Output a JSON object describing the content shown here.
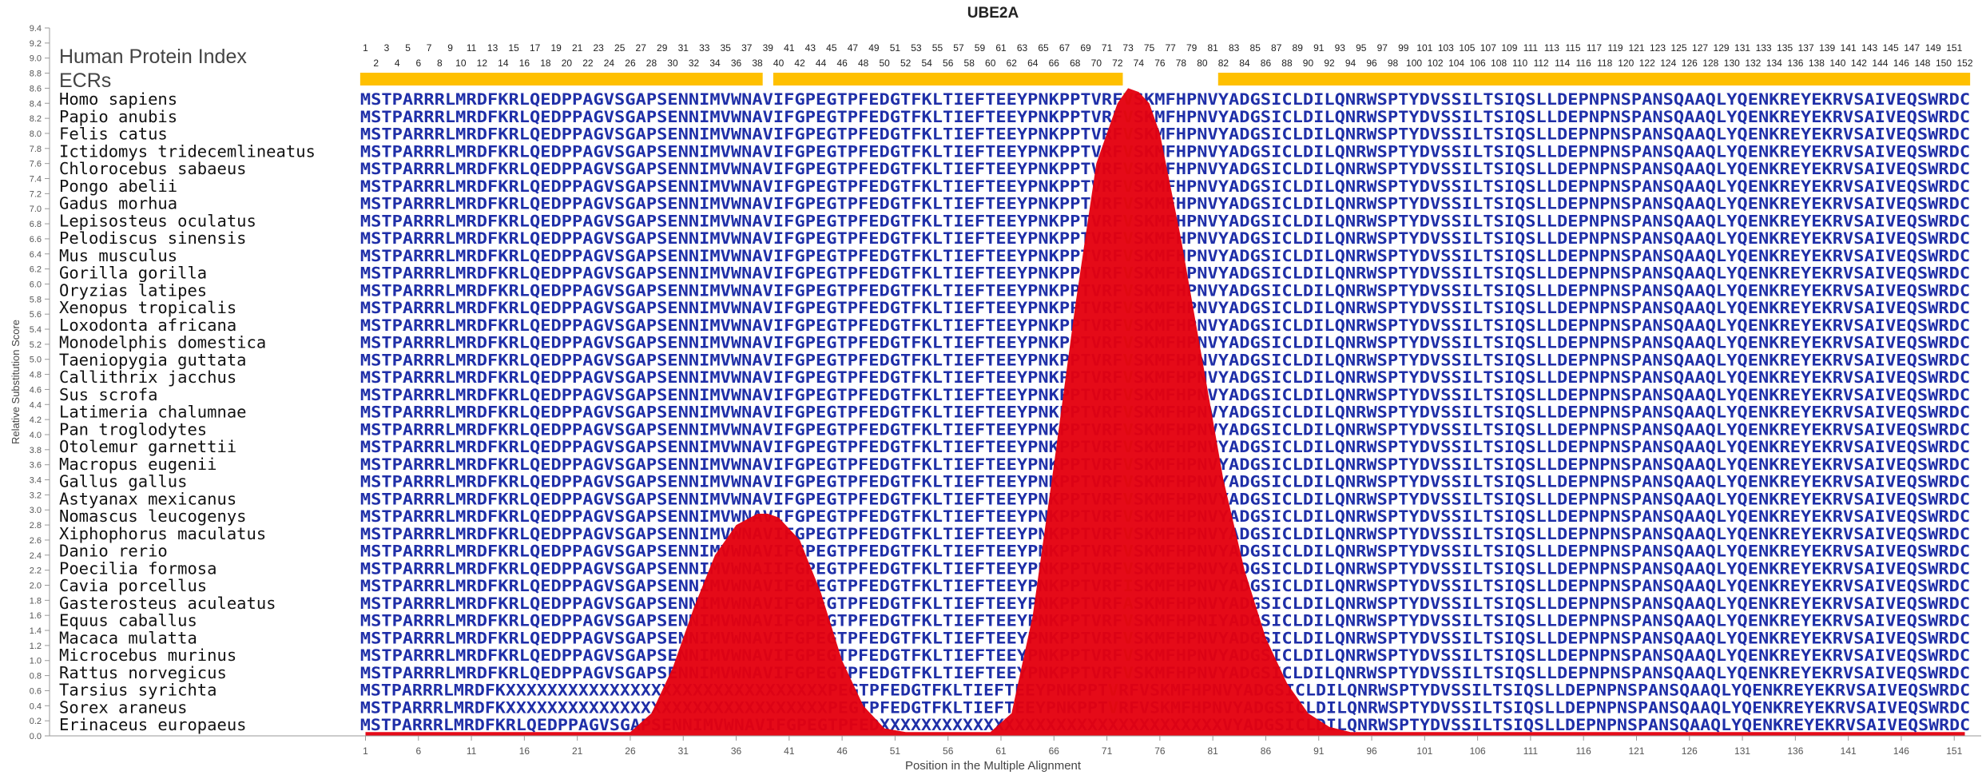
{
  "chart_data": {
    "type": "area",
    "title": "UBE2A",
    "xlabel": "Position in the Multiple Alignment",
    "ylabel": "Relative Substitution Score",
    "y_ticks": [
      0.0,
      0.2,
      0.4,
      0.6,
      0.8,
      1.0,
      1.2,
      1.4,
      1.6,
      1.8,
      2.0,
      2.2,
      2.4,
      2.6,
      2.8,
      3.0,
      3.2,
      3.4,
      3.6,
      3.8,
      4.0,
      4.2,
      4.4,
      4.6,
      4.8,
      5.0,
      5.2,
      5.4,
      5.6,
      5.8,
      6.0,
      6.2,
      6.4,
      6.6,
      6.8,
      7.0,
      7.2,
      7.4,
      7.6,
      7.8,
      8.0,
      8.2,
      8.4,
      8.6,
      8.8,
      9.0,
      9.2,
      9.4
    ],
    "x_ticks": [
      1,
      6,
      11,
      16,
      21,
      26,
      31,
      36,
      41,
      46,
      51,
      56,
      61,
      66,
      71,
      76,
      81,
      86,
      91,
      96,
      101,
      106,
      111,
      116,
      121,
      126,
      131,
      136,
      141,
      146,
      151
    ],
    "xlim": [
      1,
      152
    ],
    "ylim": [
      0,
      9.4
    ],
    "grid": false,
    "series_color": "#e4000f",
    "ecr_label": "ECRs",
    "ecr_color": "#ffc000",
    "ecrs": [
      [
        1,
        38
      ],
      [
        40,
        72
      ],
      [
        82,
        152
      ]
    ],
    "index_label": "Human Protein Index",
    "index_odd": [
      1,
      3,
      5,
      7,
      9,
      11,
      13,
      15,
      17,
      19,
      21,
      23,
      25,
      27,
      29,
      31,
      33,
      35,
      37,
      39,
      41,
      43,
      45,
      47,
      49,
      51,
      53,
      55,
      57,
      59,
      61,
      63,
      65,
      67,
      69,
      71,
      73,
      75,
      77,
      79,
      81,
      83,
      85,
      87,
      89,
      91,
      93,
      95,
      97,
      99,
      101,
      103,
      105,
      107,
      109,
      111,
      113,
      115,
      117,
      119,
      121,
      123,
      125,
      127,
      129,
      131,
      133,
      135,
      137,
      139,
      141,
      143,
      145,
      147,
      149,
      151
    ],
    "index_even": [
      2,
      4,
      6,
      8,
      10,
      12,
      14,
      16,
      18,
      20,
      22,
      24,
      26,
      28,
      30,
      32,
      34,
      36,
      38,
      40,
      42,
      44,
      46,
      48,
      50,
      52,
      54,
      56,
      58,
      60,
      62,
      64,
      66,
      68,
      70,
      72,
      74,
      76,
      78,
      80,
      82,
      84,
      86,
      88,
      90,
      92,
      94,
      96,
      98,
      100,
      102,
      104,
      106,
      108,
      110,
      112,
      114,
      116,
      118,
      120,
      122,
      124,
      126,
      128,
      130,
      132,
      134,
      136,
      138,
      140,
      142,
      144,
      146,
      148,
      150,
      152
    ],
    "x": [
      1,
      26,
      28,
      30,
      32,
      34,
      36,
      38,
      39,
      40,
      42,
      44,
      46,
      48,
      50,
      52,
      60,
      62,
      64,
      66,
      68,
      70,
      72,
      73,
      74,
      75,
      76,
      78,
      80,
      82,
      84,
      86,
      88,
      90,
      92,
      94,
      96,
      152
    ],
    "y": [
      0.05,
      0.05,
      0.3,
      0.9,
      1.7,
      2.4,
      2.8,
      2.95,
      2.95,
      2.9,
      2.6,
      1.9,
      1.0,
      0.4,
      0.1,
      0.05,
      0.05,
      0.3,
      1.6,
      3.6,
      5.7,
      7.6,
      8.4,
      8.6,
      8.55,
      8.4,
      8.0,
      6.6,
      5.0,
      3.4,
      2.2,
      1.3,
      0.7,
      0.3,
      0.12,
      0.05,
      0.05,
      0.05
    ],
    "species": [
      "Homo sapiens",
      "Papio anubis",
      "Felis catus",
      "Ictidomys tridecemlineatus",
      "Chlorocebus sabaeus",
      "Pongo abelii",
      "Gadus morhua",
      "Lepisosteus oculatus",
      "Pelodiscus sinensis",
      "Mus musculus",
      "Gorilla gorilla",
      "Oryzias latipes",
      "Xenopus tropicalis",
      "Loxodonta africana",
      "Monodelphis domestica",
      "Taeniopygia guttata",
      "Callithrix jacchus",
      "Sus scrofa",
      "Latimeria chalumnae",
      "Pan troglodytes",
      "Otolemur garnettii",
      "Macropus eugenii",
      "Gallus gallus",
      "Astyanax mexicanus",
      "Nomascus leucogenys",
      "Xiphophorus maculatus",
      "Danio rerio",
      "Poecilia formosa",
      "Cavia porcellus",
      "Gasterosteus aculeatus",
      "Equus caballus",
      "Macaca mulatta",
      "Microcebus murinus",
      "Rattus norvegicus",
      "Tarsius syrichta",
      "Sorex araneus",
      "Erinaceus europaeus"
    ],
    "sequences": [
      "MSTPARRRLMRDFKRLQEDPPAGVSGAPSENNIMVWNAVIFGPEGTPFEDGTFKLTIEFTEEYPNKPPTVRFVSKMFHPNVYADGSICLDILQNRWSPTYDVSSILTSIQSLLDEPNPNSPANSQAAQLYQENKREYEKRVSAIVEQSWRDC",
      "MSTPARRRLMRDFKRLQEDPPAGVSGAPSENNIMVWNAVIFGPEGTPFEDGTFKLTIEFTEEYPNKPPTVRFVSKMFHPNVYADGSICLDILQNRWSPTYDVSSILTSIQSLLDEPNPNSPANSQAAQLYQENKREYEKRVSAIVEQSWRDC",
      "MSTPARRRLMRDFKRLQEDPPAGVSGAPSENNIMVWNAVIFGPEGTPFEDGTFKLTIEFTEEYPNKPPTVRFVSKMFHPNVYADGSICLDILQNRWSPTYDVSSILTSIQSLLDEPNPNSPANSQAAQLYQENKREYEKRVSAIVEQSWRDC",
      "MSTPARRRLMRDFKRLQEDPPAGVSGAPSENNIMVWNAVIFGPEGTPFEDGTFKLTIEFTEEYPNKPPTVRFVSKMFHPNVYADGSICLDILQNRWSPTYDVSSILTSIQSLLDEPNPNSPANSQAAQLYQENKREYEKRVSAIVEQSWRDC",
      "MSTPARRRLMRDFKRLQEDPPAGVSGAPSENNIMVWNAVIFGPEGTPFEDGTFKLTIEFTEEYPNKPPTVRFVSKMFHPNVYADGSICLDILQNRWSPTYDVSSILTSIQSLLDEPNPNSPANSQAAQLYQENKREYEKRVSAIVEQSWRDC",
      "MSTPARRRLMRDFKRLQEDPPAGVSGAPSENNIMVWNAVIFGPEGTPFEDGTFKLTIEFTEEYPNKPPTVRFVSKMFHPNVYADGSICLDILQNRWSPTYDVSSILTSIQSLLDEPNPNSPANSQAAQLYQENKREYEKRVSAIVEQSWRDC",
      "MSTPARRRLMRDFKRLQEDPPAGVSGAPSENNIMVWNAVIFGPEGTPFEDGTFKLTIEFTEEYPNKPPTVRFVSKMFHPNVYADGSICLDILQNRWSPTYDVSSILTSIQSLLDEPNPNSPANSQAAQLYQENKREYEKRVSAIVEQSWRDC",
      "MSTPARRRLMRDFKRLQEDPPAGVSGAPSENNIMVWNAVIFGPEGTPFEDGTFKLTIEFTEEYPNKPPTVRFVSKMFHPNVYADGSICLDILQNRWSPTYDVSSILTSIQSLLDEPNPNSPANSQAAQLYQENKREYEKRVSAIVEQSWRDC",
      "MSTPARRRLMRDFKRLQEDPPAGVSGAPSENNIMVWNAVIFGPEGTPFEDGTFKLTIEFTEEYPNKPPTVRFVSKMFHPNVYADGSICLDILQNRWSPTYDVSSILTSIQSLLDEPNPNSPANSQAAQLYQENKREYEKRVSAIVEQSWRDC",
      "MSTPARRRLMRDFKRLQEDPPAGVSGAPSENNIMVWNAVIFGPEGTPFEDGTFKLTIEFTEEYPNKPPTVRFVSKMFHPNVYADGSICLDILQNRWSPTYDVSSILTSIQSLLDEPNPNSPANSQAAQLYQENKREYEKRVSAIVEQSWRDC",
      "MSTPARRRLMRDFKRLQEDPPAGVSGAPSENNIMVWNAVIFGPEGTPFEDGTFKLTIEFTEEYPNKPPTVRFVSKMFHPNVYADGSICLDILQNRWSPTYDVSSILTSIQSLLDEPNPNSPANSQAAQLYQENKREYEKRVSAIVEQSWRDC",
      "MSTPARRRLMRDFKRLQEDPPAGVSGAPSENNIMVWNAVIFGPEGTPFEDGTFKLTIEFTEEYPNKPPTVRFVSKMFHPNVYADGSICLDILQNRWSPTYDVSSILTSIQSLLDEPNPNSPANSQAAQLYQENKREYEKRVSAIVEQSWRDC",
      "MSTPARRRLMRDFKRLQEDPPAGVSGAPSENNIMVWNAVIFGPEGTPFEDGTFKLTIEFTEEYPNKPPTVRFVSKMFHPNVYADGSICLDILQNRWSPTYDVSSILTSIQSLLDEPNPNSPANSQAAQLYQENKREYEKRVSAIVEQSWRDC",
      "MSTPARRRLMRDFKRLQEDPPAGVSGAPSENNIMVWNAVIFGPEGTPFEDGTFKLTIEFTEEYPNKPPTVRFVSKMFHPNVYADGSICLDILQNRWSPTYDVSSILTSIQSLLDEPNPNSPANSQAAQLYQENKREYEKRVSAIVEQSWRDC",
      "MSTPARRRLMRDFKRLQEDPPAGVSGAPSENNIMVWNAVIFGPEGTPFEDGTFKLTIEFTEEYPNKPPTVRFVSKMFHPNVYADGSICLDILQNRWSPTYDVSSILTSIQSLLDEPNPNSPANSQAAQLYQENKREYEKRVSAIVEQSWRDC",
      "MSTPARRRLMRDFKRLQEDPPAGVSGAPSENNIMVWNAVIFGPEGTPFEDGTFKLTIEFTEEYPNKPPTVRFVSKMFHPNVYADGSICLDILQNRWSPTYDVSSILTSIQSLLDEPNPNSPANSQAAQLYQENKREYEKRVSAIVEQSWRDC",
      "MSTPARRRLMRDFKRLQEDPPAGVSGAPSENNIMVWNAVIFGPEGTPFEDGTFKLTIEFTEEYPNKPPTVRFVSKMFHPNVYADGSICLDILQNRWSPTYDVSSILTSIQSLLDEPNPNSPANSQAAQLYQENKREYEKRVSAIVEQSWRDC",
      "MSTPARRRLMRDFKRLQEDPPAGVSGAPSENNIMVWNAVIFGPEGTPFEDGTFKLTIEFTEEYPNKPPTVRFVSKMFHPNVYADGSICLDILQNRWSPTYDVSSILTSIQSLLDEPNPNSPANSQAAQLYQENKREYEKRVSAIVEQSWRDC",
      "MSTPARRRLMRDFKRLQEDPPAGVSGAPSENNIMVWNAVIFGPEGTPFEDGTFKLTIEFTEEYPNKPPTVRFVSKMFHPNVYADGSICLDILQNRWSPTYDVSSILTSIQSLLDEPNPNSPANSQAAQLYQENKREYEKRVSAIVEQSWRDC",
      "MSTPARRRLMRDFKRLQEDPPAGVSGAPSENNIMVWNAVIFGPEGTPFEDGTFKLTIEFTEEYPNKPPTVRFVSKMFHPNVYADGSICLDILQNRWSPTYDVSSILTSIQSLLDEPNPNSPANSQAAQLYQENKREYEKRVSAIVEQSWRDC",
      "MSTPARRRLMRDFKRLQEDPPAGVSGAPSENNIMVWNAVIFGPEGTPFEDGTFKLTIEFTEEYPNKPPTVRFVSKMFHPNVYADGSICLDILQNRWSPTYDVSSILTSIQSLLDEPNPNSPANSQAAQLYQENKREYEKRVSAIVEQSWRDC",
      "MSTPARRRLMRDFKRLQEDPPAGVSGAPSENNIMVWNAVIFGPEGTPFEDGTFKLTIEFTEEYPNKPPTVRFVSKMFHPNVYADGSICLDILQNRWSPTYDVSSILTSIQSLLDEPNPNSPANSQAAQLYQENKREYEKRVSAIVEQSWRDC",
      "MSTPARRRLMRDFKRLQEDPPAGVSGAPSENNIMVWNAVIFGPEGTPFEDGTFKLTIEFTEEYPNKPPTVRFVSKMFHPNVYADGSICLDILQNRWSPTYDVSSILTSIQSLLDEPNPNSPANSQAAQLYQENKREYEKRVSAIVEQSWRDC",
      "MSTPARRRLMRDFKRLQEDPPAGVSGAPSENNIMVWNAVIFGPEGTPFEDGTFKLTIEFTEEYPNKPPTVRFVSKMFHPNVYADGSICLDILQNRWSPTYDVSSILTSIQSLLDEPNPNSPANSQAAQLYQENKREYEKRVSAIVEQSWRDC",
      "MSTPARRRLMRDFKRLQEDPPAGVSGAPSENNIMVWNAVIFGPEGTPFEDGTFKLTIEFTEEYPNKPPTVRFVSKMFHPNVYADGSICLDILQNRWSPTYDVSSILTSIQSLLDEPNPNSPANSQAAQLYQENKREYEKRVSAIVEQSWRDC",
      "MSTPARRRLMRDFKRLQEDPPAGVSGAPSENNIMVWNAVIFGPEGTPFEDGTFKLTIEFTEEYPNKPPTVRFVSKMFHPNVYADGSICLDILQNRWSPTYDVSSILTSIQSLLDEPNPNSPANSQAAQLYQENKREYEKRVSAIVEQSWRDC",
      "MSTPARRRLMRDFKRLQEDPPAGVSGAPSENNIMVWNAVIFGPEGTPFEDGTFKLTIEFTEEYPNKPPTVRFVSKMFHPNVYADGSICLDILQNRWSPTYDVSSILTSIQSLLDEPNPNSPANSQAAQLYQENKREYEKRVSAIVEQSWRDC",
      "MSTPARRRLMRDFKRLQEDPPAGVSGAPSENNIMVWNAIIFGPEGTPFEDGTFKLTIEFTEEYPNKPPTVRFVSKMFHPNVYADGSICLDILQNRWSPTYDVSSILTSIQSLLDEPNPNSPANSQAAQLYQENKREYEKRVSAIVEQSWRDC",
      "MSTPARRRLMRDFKRLQEDPPAGVSGAPSENNIMVWNAVIFGPEGTPFEDGTFKLTIEFTEEYPNKPPTVRFISKMFHPNVYADGSICLDILQNRWSPTYDVSSILTSIQSLLDEPNPNSPANSQAAQLYQENKREYEKRVSAIVEQSWRDC",
      "MSTPARRRLMRDFKRLQEDPPAGVSGAPSENNIMVWNAVIFGPEGTPFEDGTFKLTIEFTEEYPNKPPTVRFASKMFHPNVYADGSICLDILQNRWSPTYDVSSILTSIQSLLDEPNPNSPANSQAAQLYQENKREYEKRVSAIVEQSWRDC",
      "MSTPARRRLMRDFKRLQEDPPAGVSGAPSENNIMVWNAVIFGPEGTPFEDGTFKLTIEFTEEYPNKPPTVRFVSKMFHPNIYADGSICLDILQNRWSPTYDVSSILTSIQSLLDEPNPNSPANSQAAQLYQENKREYEKRVSAIVEQSWRDC",
      "MSTPARRRLMRDFKRLQEDPPAGVSGAPSENNIMVWNAVIFGPEGTPFEDGTFKLTIEFTEEYPNKPPTVRFVSKMFHPNVYADGSICLDILQNRWSPTYDVSSILTSIQSLLDEPNPNSPANSQAAQLYQENKREYEKRVSAIVEQSWRDC",
      "MSTPARRRLMRDFKRLQEDPPAGVSGAPSENNIMVWNAVIFGPEGTPFEDGTFKLTIEFTEEYPNKPPTVRFVSKMFHPNVYADGSICLDILQNRWSPTYDVSSILTSIQSLLDEPNPNSPANSQAAQLYQENKREYEKRVSAIVEQSWRDC",
      "MSTPARRRLMRDFKRLQEDPPAGVSGAPSENNIMVWNAVIFGPEGTPFEDGTFKLTIEFTEEYPNKPPTVRFVSKMFHPNVYADGSICLDILQNRWSPTYDVSSILTSIQSLLDEPNPNSPANSQAAQLYQENKREYEKRVSAIVEQSWRDC",
      "MSTPARRRLMRDFKXXXXXXXXXXXXXXXXXXXXXXXXXXXXXXXPEGTPFEDGTFKLTIEFTEEYPNKPPTVRFVSKMFHPNVYADGSICLDILQNRWSPTYDVSSILTSIQSLLDEPNPNSPANSQAAQLYQENKREYEKRVSAIVEQSWRDC",
      "MSTPARRRLMRDFKXXXXXXXXXXXXXXXXXXXXXXXXXXXXXXXPEGTPFEDGTFKLTIEFTEEYPNKPPTVRFVSKMFHPNVYADGSICLDILQNRWSPTYDVSSILTSIQSLLDEPNPNSPANSQAAQLYQENKREYEKRVSAIVEQSWRDC",
      "MSTPARRRLMRDFKRLQEDPPAGVSGAPSENNIMVWNAVIFGPEGTPFEDXXXXXXXXXXXXXXXXXXXXXXXXXXXXXXXXXVYADGSICLDILQNRWSPTYDVSSILTSIQSLLDEPNPNSPANSQAAQLYQENKREYEKRVSAIVEQSWRDC"
    ]
  }
}
